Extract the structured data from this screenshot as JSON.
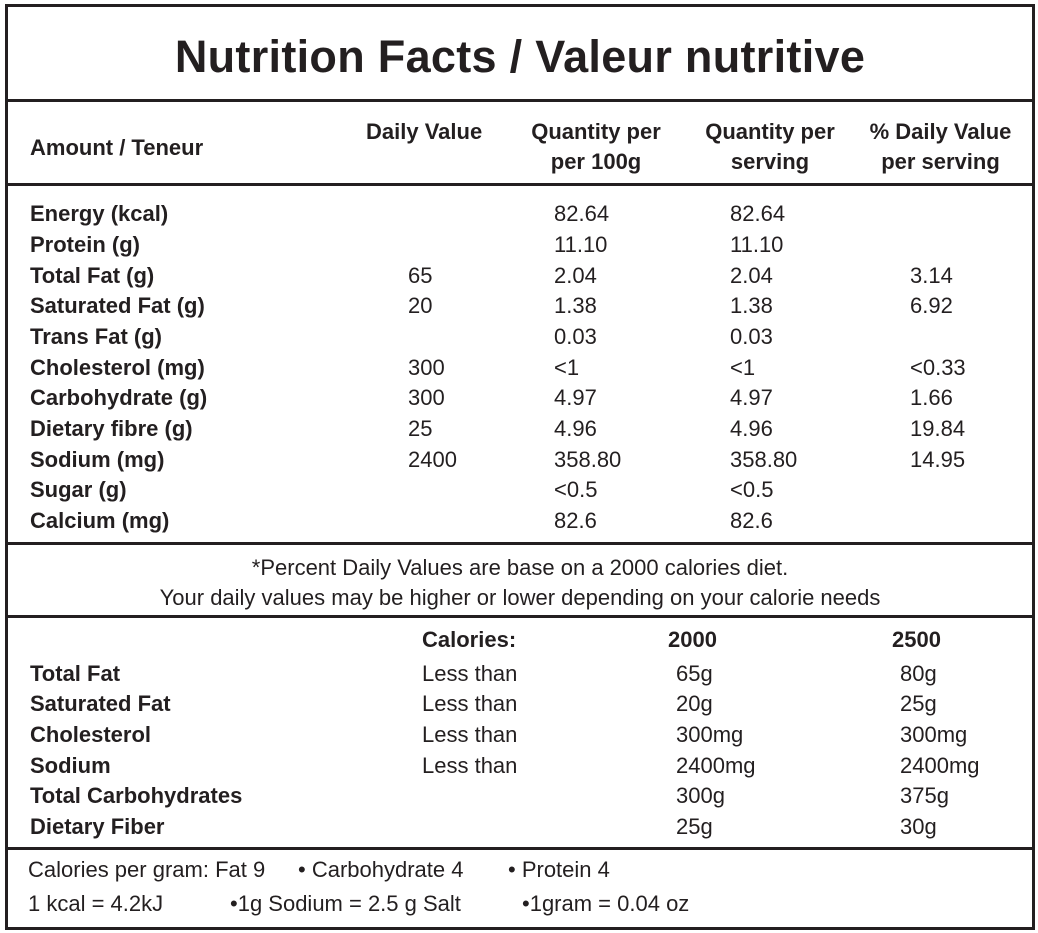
{
  "title": "Nutrition Facts / Valeur nutritive",
  "header": {
    "amount": "Amount / Teneur",
    "daily_value": "Daily Value",
    "qty_100g_line1": "Quantity per",
    "qty_100g_line2": "per 100g",
    "qty_serving_line1": "Quantity per",
    "qty_serving_line2": "serving",
    "pct_dv_line1": "% Daily Value",
    "pct_dv_line2": "per serving"
  },
  "nutrients": [
    {
      "name": "Energy (kcal)",
      "dv": "",
      "per100g": "82.64",
      "perServing": "82.64",
      "pctDV": ""
    },
    {
      "name": "Protein (g)",
      "dv": "",
      "per100g": "11.10",
      "perServing": "11.10",
      "pctDV": ""
    },
    {
      "name": "Total Fat (g)",
      "dv": "65",
      "per100g": "2.04",
      "perServing": "2.04",
      "pctDV": "3.14"
    },
    {
      "name": "Saturated Fat (g)",
      "dv": "20",
      "per100g": "1.38",
      "perServing": "1.38",
      "pctDV": "6.92"
    },
    {
      "name": "Trans Fat (g)",
      "dv": "",
      "per100g": "0.03",
      "perServing": "0.03",
      "pctDV": ""
    },
    {
      "name": "Cholesterol (mg)",
      "dv": "300",
      "per100g": "<1",
      "perServing": "<1",
      "pctDV": "<0.33"
    },
    {
      "name": "Carbohydrate (g)",
      "dv": "300",
      "per100g": "4.97",
      "perServing": "4.97",
      "pctDV": "1.66"
    },
    {
      "name": "Dietary fibre (g)",
      "dv": "25",
      "per100g": "4.96",
      "perServing": "4.96",
      "pctDV": "19.84"
    },
    {
      "name": "Sodium (mg)",
      "dv": "2400",
      "per100g": "358.80",
      "perServing": "358.80",
      "pctDV": "14.95"
    },
    {
      "name": "Sugar (g)",
      "dv": "",
      "per100g": "<0.5",
      "perServing": "<0.5",
      "pctDV": ""
    },
    {
      "name": "Calcium (mg)",
      "dv": "",
      "per100g": "82.6",
      "perServing": "82.6",
      "pctDV": ""
    }
  ],
  "footnote": {
    "line1": "*Percent Daily Values are base on a 2000 calories diet.",
    "line2": "Your daily values may be higher or lower depending on your calorie needs"
  },
  "reference": {
    "calories_label": "Calories:",
    "col_2000": "2000",
    "col_2500": "2500",
    "rows": [
      {
        "name": "Total Fat",
        "qualifier": "Less than",
        "v2000": "65g",
        "v2500": "80g"
      },
      {
        "name": "Saturated Fat",
        "qualifier": "Less than",
        "v2000": "20g",
        "v2500": "25g"
      },
      {
        "name": "Cholesterol",
        "qualifier": "Less than",
        "v2000": "300mg",
        "v2500": "300mg"
      },
      {
        "name": "Sodium",
        "qualifier": "Less than",
        "v2000": "2400mg",
        "v2500": "2400mg"
      },
      {
        "name": "Total Carbohydrates",
        "qualifier": "",
        "v2000": "300g",
        "v2500": "375g"
      },
      {
        "name": "Dietary Fiber",
        "qualifier": "",
        "v2000": "25g",
        "v2500": "30g"
      }
    ]
  },
  "conversions": {
    "line1_a": "Calories per gram: Fat 9",
    "line1_b": "• Carbohydrate 4",
    "line1_c": "• Protein 4",
    "line2_a": "1 kcal = 4.2kJ",
    "line2_b": "•1g Sodium = 2.5 g Salt",
    "line2_c": "•1gram = 0.04 oz"
  }
}
